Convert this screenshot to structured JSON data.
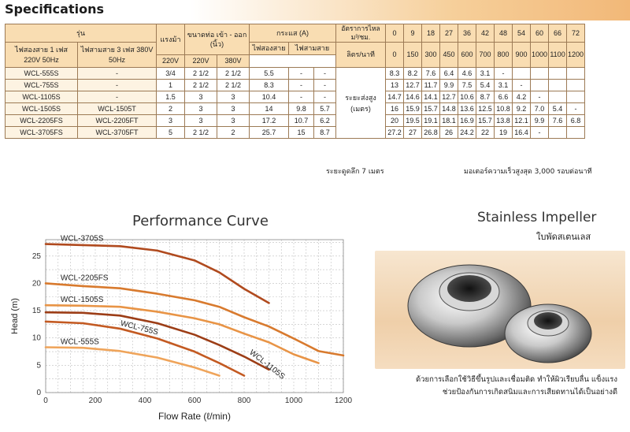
{
  "title": "Specifications",
  "table": {
    "col_model": "รุ่น",
    "col_single": "ไฟสองสาย 1 เฟส 220V 50Hz",
    "col_three": "ไฟสามสาย 3 เฟส 380V 50Hz",
    "col_hp": "แรงม้า",
    "col_pipe": "ขนาดท่อ เข้า - ออก (นิ้ว)",
    "col_current": "กระแส (A)",
    "col_cur_single": "ไฟสองสาย",
    "col_cur_three": "ไฟสามสาย",
    "col_v220": "220V",
    "col_v220b": "220V",
    "col_v380": "380V",
    "col_flow_label": "อัตราการไหล ม³/ชม.",
    "col_flow_lpm": "ลิตร/นาที",
    "head_label": "ระยะส่งสูง (เมตร)",
    "flow_m3h": [
      "0",
      "9",
      "18",
      "27",
      "36",
      "42",
      "48",
      "54",
      "60",
      "66",
      "72"
    ],
    "flow_lpm": [
      "0",
      "150",
      "300",
      "450",
      "600",
      "700",
      "800",
      "900",
      "1000",
      "1100",
      "1200"
    ],
    "rows": [
      {
        "m1": "WCL-555S",
        "m3": "-",
        "hp": "3/4",
        "in": "2 1/2",
        "out": "2 1/2",
        "a1": "5.5",
        "a2": "-",
        "a3": "-",
        "h": [
          "8.3",
          "8.2",
          "7.6",
          "6.4",
          "4.6",
          "3.1",
          "-",
          "",
          "",
          "",
          ""
        ]
      },
      {
        "m1": "WCL-755S",
        "m3": "-",
        "hp": "1",
        "in": "2 1/2",
        "out": "2 1/2",
        "a1": "8.3",
        "a2": "-",
        "a3": "-",
        "h": [
          "13",
          "12.7",
          "11.7",
          "9.9",
          "7.5",
          "5.4",
          "3.1",
          "-",
          "",
          "",
          ""
        ]
      },
      {
        "m1": "WCL-1105S",
        "m3": "-",
        "hp": "1.5",
        "in": "3",
        "out": "3",
        "a1": "10.4",
        "a2": "-",
        "a3": "-",
        "h": [
          "14.7",
          "14.6",
          "14.1",
          "12.7",
          "10.6",
          "8.7",
          "6.6",
          "4.2",
          "-",
          "",
          ""
        ]
      },
      {
        "m1": "WCL-1505S",
        "m3": "WCL-1505T",
        "hp": "2",
        "in": "3",
        "out": "3",
        "a1": "14",
        "a2": "9.8",
        "a3": "5.7",
        "h": [
          "16",
          "15.9",
          "15.7",
          "14.8",
          "13.6",
          "12.5",
          "10.8",
          "9.2",
          "7.0",
          "5.4",
          "-"
        ]
      },
      {
        "m1": "WCL-2205FS",
        "m3": "WCL-2205FT",
        "hp": "3",
        "in": "3",
        "out": "3",
        "a1": "17.2",
        "a2": "10.7",
        "a3": "6.2",
        "h": [
          "20",
          "19.5",
          "19.1",
          "18.1",
          "16.9",
          "15.7",
          "13.8",
          "12.1",
          "9.9",
          "7.6",
          "6.8"
        ]
      },
      {
        "m1": "WCL-3705FS",
        "m3": "WCL-3705FT",
        "hp": "5",
        "in": "2 1/2",
        "out": "2",
        "a1": "25.7",
        "a2": "15",
        "a3": "8.7",
        "h": [
          "27.2",
          "27",
          "26.8",
          "26",
          "24.2",
          "22",
          "19",
          "16.4",
          "-",
          "",
          ""
        ]
      }
    ]
  },
  "note_left": "ระยะดูดลึก 7 เมตร",
  "note_right": "มอเตอร์ความเร็วสูงสุด 3,000 รอบต่อนาที",
  "perf_title": "Performance Curve",
  "chart_data": {
    "type": "line",
    "title": "Performance Curve",
    "xlabel": "Flow Rate (ℓ/min)",
    "ylabel": "Head (m)",
    "xlim": [
      0,
      1200
    ],
    "ylim": [
      0,
      28
    ],
    "xticks": [
      0,
      200,
      400,
      600,
      800,
      1000,
      1200
    ],
    "yticks": [
      0,
      5,
      10,
      15,
      20,
      25
    ],
    "grid": true,
    "series": [
      {
        "name": "WCL-3705S",
        "color": "#b04a1e",
        "x": [
          0,
          150,
          300,
          450,
          600,
          700,
          800,
          900
        ],
        "y": [
          27.2,
          27,
          26.8,
          26,
          24.2,
          22,
          19,
          16.4
        ]
      },
      {
        "name": "WCL-2205FS",
        "color": "#d87a2e",
        "x": [
          0,
          150,
          300,
          450,
          600,
          700,
          800,
          900,
          1000,
          1100,
          1200
        ],
        "y": [
          20,
          19.5,
          19.1,
          18.1,
          16.9,
          15.7,
          13.8,
          12.1,
          9.9,
          7.6,
          6.8
        ]
      },
      {
        "name": "WCL-1505S",
        "color": "#e89446",
        "x": [
          0,
          150,
          300,
          450,
          600,
          700,
          800,
          900,
          1000,
          1100
        ],
        "y": [
          16,
          15.9,
          15.7,
          14.8,
          13.6,
          12.5,
          10.8,
          9.2,
          7.0,
          5.4
        ]
      },
      {
        "name": "WCL-1105S",
        "color": "#9c3d16",
        "x": [
          0,
          150,
          300,
          450,
          600,
          700,
          800,
          900
        ],
        "y": [
          14.7,
          14.6,
          14.1,
          12.7,
          10.6,
          8.7,
          6.6,
          4.2
        ]
      },
      {
        "name": "WCL-755S",
        "color": "#c35a22",
        "x": [
          0,
          150,
          300,
          450,
          600,
          700,
          800
        ],
        "y": [
          13,
          12.7,
          11.7,
          9.9,
          7.5,
          5.4,
          3.1
        ]
      },
      {
        "name": "WCL-555S",
        "color": "#efa45a",
        "x": [
          0,
          150,
          300,
          450,
          600,
          700
        ],
        "y": [
          8.3,
          8.2,
          7.6,
          6.4,
          4.6,
          3.1
        ]
      }
    ]
  },
  "impeller_title": "Stainless Impeller",
  "impeller_sub": "ใบพัดสเตนเลส",
  "impeller_caption_1": "ด้วยการเลือกใช้วิธีขึ้นรูปและเชื่อมติด ทำให้ผิวเรียบลื่น แข็งแรง",
  "impeller_caption_2": "ช่วยป้องกันการเกิดสนิมและการเสียดทานได้เป็นอย่างดี"
}
